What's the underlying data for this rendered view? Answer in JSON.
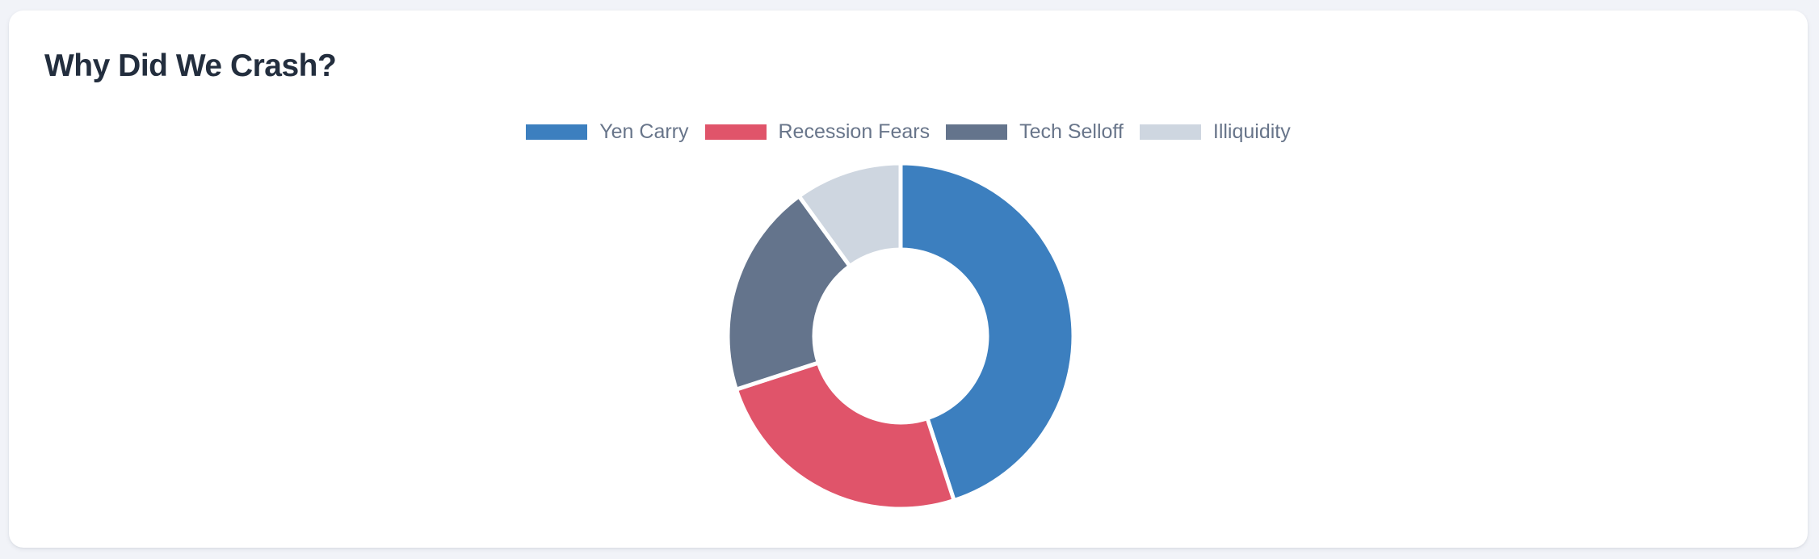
{
  "card": {
    "title": "Why Did We Crash?"
  },
  "chart_data": {
    "type": "pie",
    "variant": "doughnut",
    "title": "Why Did We Crash?",
    "labels": [
      "Yen Carry",
      "Recession Fears",
      "Tech Selloff",
      "Illiquidity"
    ],
    "values": [
      45,
      25,
      20,
      10
    ],
    "unit": "percent-of-total",
    "colors": [
      "#3c7fbf",
      "#e0546a",
      "#64748c",
      "#ced6e0"
    ],
    "legend_position": "top",
    "legend_order": [
      "Yen Carry",
      "Recession Fears",
      "Tech Selloff",
      "Illiquidity"
    ],
    "start_angle_deg": 0,
    "direction": "clockwise",
    "cutout_percent": 50,
    "segment_border_color": "#ffffff",
    "segment_border_width": 5,
    "data_labels_shown": false,
    "axes_shown": false
  },
  "theme": {
    "page_background": "#f1f3f8",
    "card_background": "#ffffff",
    "title_color": "#232e3e",
    "legend_text_color": "#68758a"
  }
}
